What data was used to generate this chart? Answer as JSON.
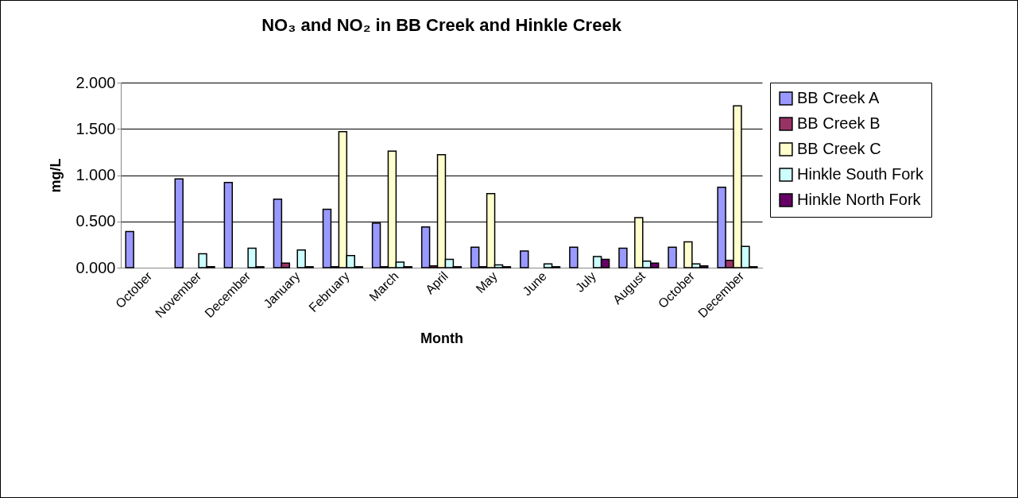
{
  "chart_data": {
    "type": "bar",
    "title": "NO₃ and NO₂ in BB Creek and Hinkle Creek",
    "xlabel": "Month",
    "ylabel": "mg/L",
    "categories": [
      "October",
      "November",
      "December",
      "January",
      "February",
      "March",
      "April",
      "May",
      "June",
      "July",
      "August",
      "October",
      "December"
    ],
    "series": [
      {
        "name": "BB Creek A",
        "color": "#9999ff",
        "values": [
          0.39,
          0.96,
          0.92,
          0.74,
          0.63,
          0.48,
          0.44,
          0.22,
          0.18,
          0.22,
          0.21,
          0.22,
          0.87
        ]
      },
      {
        "name": "BB Creek B",
        "color": "#993366",
        "values": [
          null,
          null,
          null,
          0.05,
          0.01,
          0.01,
          0.02,
          0.01,
          null,
          null,
          null,
          null,
          0.08
        ]
      },
      {
        "name": "BB Creek C",
        "color": "#ffffcc",
        "values": [
          null,
          null,
          null,
          null,
          1.47,
          1.26,
          1.22,
          0.8,
          null,
          null,
          0.54,
          0.28,
          1.75
        ]
      },
      {
        "name": "Hinkle South Fork",
        "color": "#ccffff",
        "values": [
          null,
          0.15,
          0.21,
          0.19,
          0.13,
          0.06,
          0.09,
          0.03,
          0.04,
          0.12,
          0.07,
          0.04,
          0.23
        ]
      },
      {
        "name": "Hinkle North Fork",
        "color": "#660066",
        "values": [
          null,
          0.01,
          0.01,
          0.01,
          0.01,
          0.01,
          0.01,
          0.01,
          0.01,
          0.09,
          0.05,
          0.02,
          0.01
        ]
      }
    ],
    "ylim": [
      0,
      2
    ],
    "yticks": [
      {
        "value": 0,
        "label": "0.000"
      },
      {
        "value": 0.5,
        "label": "0.500"
      },
      {
        "value": 1,
        "label": "1.000"
      },
      {
        "value": 1.5,
        "label": "1.500"
      },
      {
        "value": 2,
        "label": "2.000"
      }
    ],
    "grid": "y",
    "legend": "right"
  }
}
